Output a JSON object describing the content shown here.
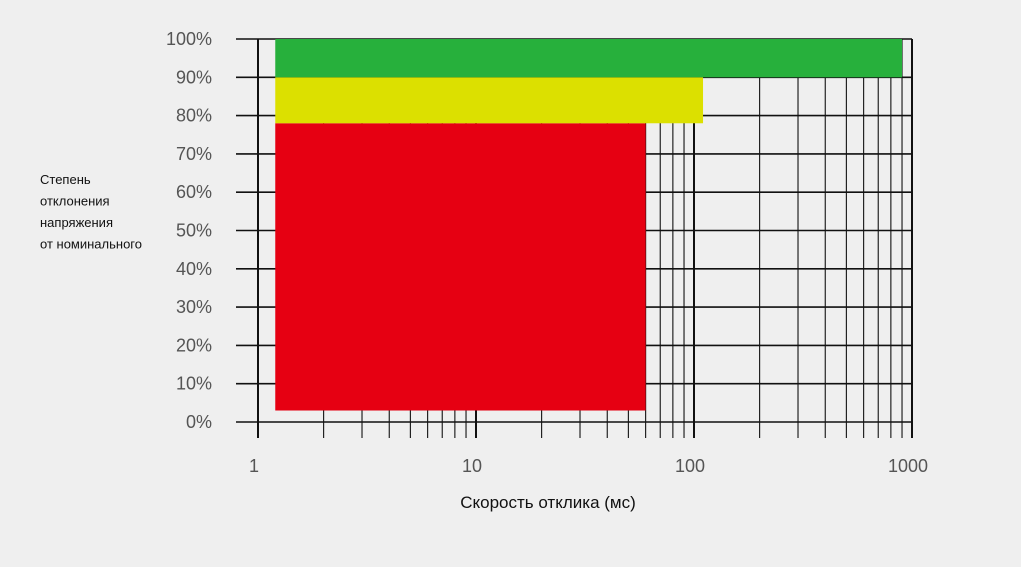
{
  "chart_data": {
    "type": "bar",
    "orientation": "horizontal",
    "x_scale": "log",
    "xlim": [
      1,
      1000
    ],
    "ylim": [
      0,
      100
    ],
    "x_ticks": [
      "1",
      "10",
      "100",
      "1000"
    ],
    "y_ticks": [
      "0%",
      "10%",
      "20%",
      "30%",
      "40%",
      "50%",
      "60%",
      "70%",
      "80%",
      "90%",
      "100%"
    ],
    "xlabel": "Скорость отклика (мс)",
    "ylabel": [
      "Степень",
      "отклонения",
      "напряжения",
      "от номинального"
    ],
    "grid": true,
    "bars": [
      {
        "color": "#e60012",
        "x_start": 1.2,
        "x_end": 60,
        "y_start": 3,
        "y_end": 78
      },
      {
        "color": "#dce000",
        "x_start": 1.2,
        "x_end": 110,
        "y_start": 78,
        "y_end": 90
      },
      {
        "color": "#27b03c",
        "x_start": 1.2,
        "x_end": 900,
        "y_start": 90,
        "y_end": 100
      }
    ]
  }
}
